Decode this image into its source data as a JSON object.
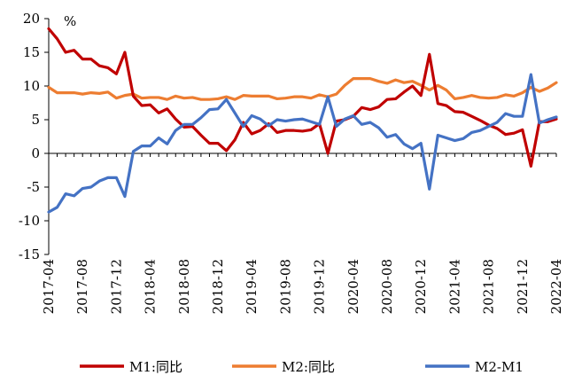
{
  "chart_data": {
    "type": "line",
    "unit": "%",
    "ylim": [
      -15,
      20
    ],
    "yticks": [
      -15,
      -10,
      -5,
      0,
      5,
      10,
      15,
      20
    ],
    "x": [
      "2017-04",
      "2017-05",
      "2017-06",
      "2017-07",
      "2017-08",
      "2017-09",
      "2017-10",
      "2017-11",
      "2017-12",
      "2018-01",
      "2018-02",
      "2018-03",
      "2018-04",
      "2018-05",
      "2018-06",
      "2018-07",
      "2018-08",
      "2018-09",
      "2018-10",
      "2018-11",
      "2018-12",
      "2019-01",
      "2019-02",
      "2019-03",
      "2019-04",
      "2019-05",
      "2019-06",
      "2019-07",
      "2019-08",
      "2019-09",
      "2019-10",
      "2019-11",
      "2019-12",
      "2020-01",
      "2020-02",
      "2020-03",
      "2020-04",
      "2020-05",
      "2020-06",
      "2020-07",
      "2020-08",
      "2020-09",
      "2020-10",
      "2020-11",
      "2020-12",
      "2021-01",
      "2021-02",
      "2021-03",
      "2021-04",
      "2021-05",
      "2021-06",
      "2021-07",
      "2021-08",
      "2021-09",
      "2021-10",
      "2021-11",
      "2021-12",
      "2022-01",
      "2022-02",
      "2022-03",
      "2022-04"
    ],
    "xtick_labels": [
      "2017-04",
      "2017-08",
      "2017-12",
      "2018-04",
      "2018-08",
      "2018-12",
      "2019-04",
      "2019-08",
      "2019-12",
      "2020-04",
      "2020-08",
      "2020-12",
      "2021-04",
      "2021-08",
      "2021-12",
      "2022-04"
    ],
    "grid": false,
    "legend_position": "bottom",
    "series": [
      {
        "name": "M1:同比",
        "color": "#c00000",
        "values": [
          18.5,
          17.0,
          15.0,
          15.3,
          14.0,
          14.0,
          13.0,
          12.7,
          11.8,
          15.0,
          8.5,
          7.1,
          7.2,
          6.0,
          6.6,
          5.1,
          3.9,
          4.0,
          2.7,
          1.5,
          1.5,
          0.4,
          2.0,
          4.6,
          2.9,
          3.4,
          4.4,
          3.1,
          3.4,
          3.4,
          3.3,
          3.5,
          4.4,
          0.0,
          4.8,
          5.0,
          5.5,
          6.8,
          6.5,
          6.9,
          8.0,
          8.1,
          9.1,
          10.0,
          8.6,
          14.7,
          7.4,
          7.1,
          6.2,
          6.1,
          5.5,
          4.9,
          4.2,
          3.7,
          2.8,
          3.0,
          3.5,
          -1.9,
          4.7,
          4.7,
          5.1
        ]
      },
      {
        "name": "M2:同比",
        "color": "#ed7d31",
        "values": [
          9.8,
          9.0,
          9.0,
          9.0,
          8.8,
          9.0,
          8.9,
          9.1,
          8.2,
          8.6,
          8.8,
          8.2,
          8.3,
          8.3,
          8.0,
          8.5,
          8.2,
          8.3,
          8.0,
          8.0,
          8.1,
          8.4,
          8.0,
          8.6,
          8.5,
          8.5,
          8.5,
          8.1,
          8.2,
          8.4,
          8.4,
          8.2,
          8.7,
          8.4,
          8.8,
          10.1,
          11.1,
          11.1,
          11.1,
          10.7,
          10.4,
          10.9,
          10.5,
          10.7,
          10.1,
          9.4,
          10.1,
          9.4,
          8.1,
          8.3,
          8.6,
          8.3,
          8.2,
          8.3,
          8.7,
          8.5,
          9.0,
          9.8,
          9.2,
          9.7,
          10.5
        ]
      },
      {
        "name": "M2-M1",
        "color": "#4472c4",
        "values": [
          -8.7,
          -8.0,
          -6.0,
          -6.3,
          -5.2,
          -5.0,
          -4.1,
          -3.6,
          -3.6,
          -6.4,
          0.3,
          1.1,
          1.1,
          2.3,
          1.4,
          3.4,
          4.3,
          4.3,
          5.3,
          6.5,
          6.6,
          8.0,
          6.0,
          4.0,
          5.6,
          5.1,
          4.1,
          5.0,
          4.8,
          5.0,
          5.1,
          4.7,
          4.3,
          8.4,
          4.0,
          5.1,
          5.6,
          4.3,
          4.6,
          3.8,
          2.4,
          2.8,
          1.4,
          0.7,
          1.5,
          -5.3,
          2.7,
          2.3,
          1.9,
          2.2,
          3.1,
          3.4,
          4.0,
          4.6,
          5.9,
          5.5,
          5.5,
          11.7,
          4.5,
          5.0,
          5.4
        ]
      }
    ]
  }
}
